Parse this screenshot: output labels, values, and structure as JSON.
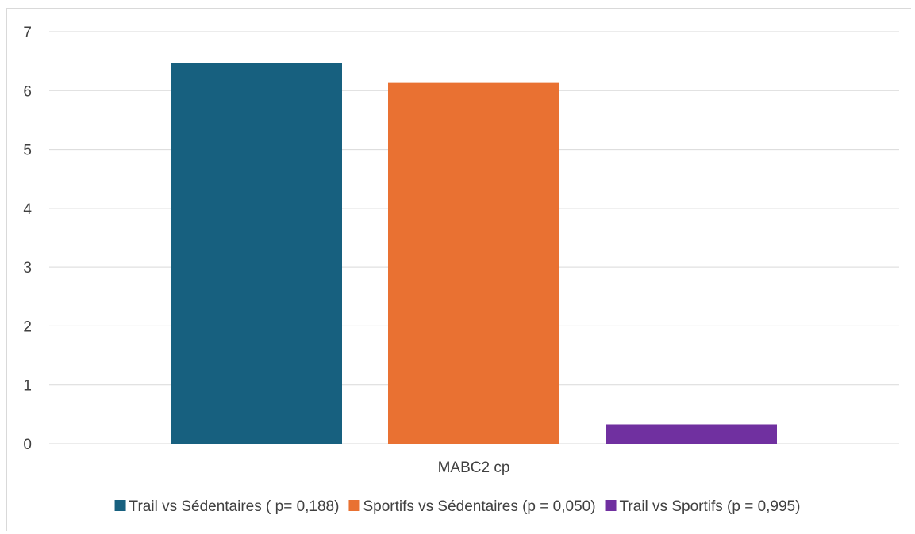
{
  "chart_data": {
    "type": "bar",
    "categories": [
      "MABC2 cp"
    ],
    "series": [
      {
        "name": "Trail vs Sédentaires ( p= 0,188)",
        "values": [
          6.47
        ],
        "color": "#17607f"
      },
      {
        "name": "Sportifs vs Sédentaires (p = 0,050)",
        "values": [
          6.13
        ],
        "color": "#e97132"
      },
      {
        "name": "Trail vs Sportifs (p = 0,995)",
        "values": [
          0.33
        ],
        "color": "#7030a0"
      }
    ],
    "ylim": [
      0,
      7
    ],
    "yticks": [
      "0",
      "1",
      "2",
      "3",
      "4",
      "5",
      "6",
      "7"
    ],
    "grid": true,
    "legend_position": "bottom",
    "gridline_color": "#d9d9d9"
  }
}
